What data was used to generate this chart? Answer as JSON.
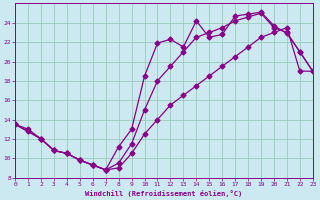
{
  "xlabel": "Windchill (Refroidissement éolien,°C)",
  "bg_color": "#cce8f0",
  "line_color": "#880088",
  "grid_color": "#99ccbb",
  "xlim": [
    0,
    23
  ],
  "ylim": [
    8,
    26
  ],
  "xticks": [
    0,
    1,
    2,
    3,
    4,
    5,
    6,
    7,
    8,
    9,
    10,
    11,
    12,
    13,
    14,
    15,
    16,
    17,
    18,
    19,
    20,
    21,
    22,
    23
  ],
  "yticks": [
    8,
    10,
    12,
    14,
    16,
    18,
    20,
    22,
    24
  ],
  "line1_x": [
    0,
    1,
    2,
    3,
    4,
    5,
    6,
    7,
    8,
    9,
    10,
    11,
    12,
    13,
    14,
    15,
    16,
    17,
    18,
    19,
    20,
    21,
    22,
    23
  ],
  "line1_y": [
    13.5,
    13.0,
    12.0,
    10.8,
    10.5,
    9.8,
    9.3,
    8.8,
    11.2,
    13.0,
    18.5,
    21.9,
    22.3,
    21.5,
    24.2,
    22.5,
    22.8,
    24.7,
    24.9,
    25.1,
    23.7,
    22.9,
    21.0,
    19.0
  ],
  "line2_x": [
    0,
    2,
    3,
    4,
    5,
    6,
    7,
    8,
    9,
    10,
    11,
    12,
    13,
    14,
    15,
    16,
    17,
    18,
    19,
    20,
    21,
    22,
    23
  ],
  "line2_y": [
    13.5,
    12.0,
    10.8,
    10.5,
    9.8,
    9.3,
    8.8,
    9.5,
    11.5,
    15.0,
    18.0,
    19.5,
    21.0,
    22.5,
    23.0,
    23.5,
    24.2,
    24.6,
    25.0,
    23.5,
    23.0,
    21.0,
    19.0
  ],
  "line3_x": [
    0,
    1,
    2,
    3,
    4,
    5,
    6,
    7,
    8,
    9,
    10,
    11,
    12,
    13,
    14,
    15,
    16,
    17,
    18,
    19,
    20,
    21,
    22,
    23
  ],
  "line3_y": [
    13.5,
    12.8,
    12.0,
    10.8,
    10.5,
    9.8,
    9.3,
    8.8,
    9.0,
    10.5,
    12.5,
    14.0,
    15.5,
    16.5,
    17.5,
    18.5,
    19.5,
    20.5,
    21.5,
    22.5,
    23.0,
    23.5,
    19.0,
    19.0
  ],
  "marker": "D",
  "markersize": 2.5,
  "linewidth": 0.9
}
